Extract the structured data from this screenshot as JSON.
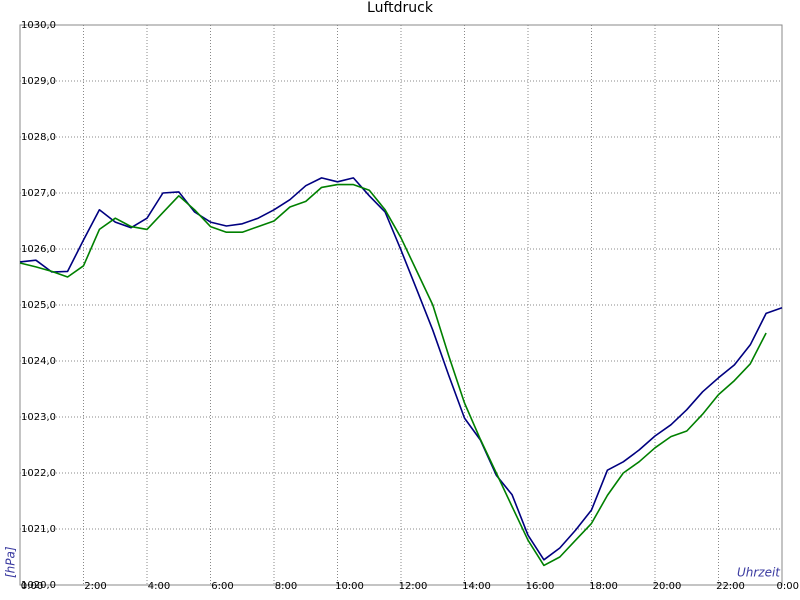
{
  "chart_data": {
    "type": "line",
    "title": "Luftdruck",
    "ylabel": "[hPa]",
    "xlabel": "Uhrzeit",
    "x": [
      0,
      0.5,
      1,
      1.5,
      2,
      2.5,
      3,
      3.5,
      4,
      4.5,
      5,
      5.5,
      6,
      6.5,
      7,
      7.5,
      8,
      8.5,
      9,
      9.5,
      10,
      10.5,
      11,
      11.5,
      12,
      12.5,
      13,
      13.5,
      14,
      14.5,
      15,
      15.5,
      16,
      16.5,
      17,
      17.5,
      18,
      18.5,
      19,
      19.5,
      20,
      20.5,
      21,
      21.5,
      22,
      22.5,
      23,
      23.5,
      24
    ],
    "series": [
      {
        "color": "#000080",
        "values": [
          1025.77,
          1025.8,
          1025.59,
          1025.6,
          1026.16,
          1026.7,
          1026.48,
          1026.38,
          1026.55,
          1027.0,
          1027.02,
          1026.66,
          1026.48,
          1026.41,
          1026.45,
          1026.55,
          1026.7,
          1026.88,
          1027.13,
          1027.27,
          1027.2,
          1027.27,
          1026.95,
          1026.66,
          1025.98,
          1025.27,
          1024.55,
          1023.75,
          1022.98,
          1022.59,
          1021.96,
          1021.61,
          1020.89,
          1020.45,
          1020.66,
          1020.98,
          1021.34,
          1022.05,
          1022.2,
          1022.41,
          1022.66,
          1022.86,
          1023.13,
          1023.45,
          1023.7,
          1023.93,
          1024.29,
          1024.85,
          1024.95
        ]
      },
      {
        "color": "#008000",
        "values": [
          1025.75,
          1025.68,
          1025.6,
          1025.5,
          1025.7,
          1026.35,
          1026.55,
          1026.4,
          1026.35,
          1026.65,
          1026.95,
          1026.7,
          1026.4,
          1026.3,
          1026.3,
          1026.4,
          1026.5,
          1026.75,
          1026.85,
          1027.1,
          1027.15,
          1027.15,
          1027.05,
          1026.7,
          1026.2,
          1025.6,
          1025.0,
          1024.1,
          1023.25,
          1022.6,
          1022.0,
          1021.4,
          1020.8,
          1020.35,
          1020.5,
          1020.8,
          1021.1,
          1021.6,
          1022.0,
          1022.2,
          1022.45,
          1022.65,
          1022.75,
          1023.05,
          1023.4,
          1023.65,
          1023.95,
          1024.5,
          null
        ]
      }
    ],
    "xlim": [
      0,
      24
    ],
    "xticks": [
      {
        "value": 0,
        "label": "0:00"
      },
      {
        "value": 2,
        "label": "2:00"
      },
      {
        "value": 4,
        "label": "4:00"
      },
      {
        "value": 6,
        "label": "6:00"
      },
      {
        "value": 8,
        "label": "8:00"
      },
      {
        "value": 10,
        "label": "10:00"
      },
      {
        "value": 12,
        "label": "12:00"
      },
      {
        "value": 14,
        "label": "14:00"
      },
      {
        "value": 16,
        "label": "16:00"
      },
      {
        "value": 18,
        "label": "18:00"
      },
      {
        "value": 20,
        "label": "20:00"
      },
      {
        "value": 22,
        "label": "22:00"
      },
      {
        "value": 24,
        "label": "0:00"
      }
    ],
    "ylim": [
      1020,
      1030
    ],
    "yticks": [
      {
        "value": 1020,
        "label": "1020,0"
      },
      {
        "value": 1021,
        "label": "1021,0"
      },
      {
        "value": 1022,
        "label": "1022,0"
      },
      {
        "value": 1023,
        "label": "1023,0"
      },
      {
        "value": 1024,
        "label": "1024,0"
      },
      {
        "value": 1025,
        "label": "1025,0"
      },
      {
        "value": 1026,
        "label": "1026,0"
      },
      {
        "value": 1027,
        "label": "1027,0"
      },
      {
        "value": 1028,
        "label": "1028,0"
      },
      {
        "value": 1029,
        "label": "1029,0"
      },
      {
        "value": 1030,
        "label": "1030,0"
      }
    ],
    "grid": true
  }
}
